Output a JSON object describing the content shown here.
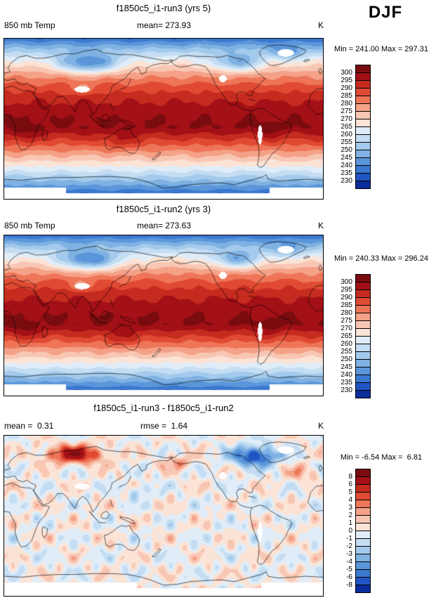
{
  "season": "DJF",
  "palette": [
    "#0b2d9b",
    "#2155c4",
    "#3b78d0",
    "#5b96da",
    "#7fb2e2",
    "#a3caec",
    "#c4ddf3",
    "#e0edf8",
    "#fbe3d6",
    "#f8c7b4",
    "#f4a188",
    "#ee7558",
    "#e04a33",
    "#c62b20",
    "#a31016",
    "#7a0c10"
  ],
  "panels": [
    {
      "title": "f1850c5_i1-run3 (yrs 5)",
      "left_label": "850 mb Temp",
      "center_label": "mean= 273.93",
      "units": "K",
      "minmax": "Min = 241.00 Max = 297.31",
      "colorbar_labels": [
        "300",
        "295",
        "290",
        "285",
        "280",
        "275",
        "270",
        "265",
        "260",
        "255",
        "250",
        "245",
        "240",
        "235",
        "230"
      ]
    },
    {
      "title": "f1850c5_i1-run2 (yrs 3)",
      "left_label": "850 mb Temp",
      "center_label": "mean= 273.63",
      "units": "K",
      "minmax": "Min = 240.33 Max = 296.24",
      "colorbar_labels": [
        "300",
        "295",
        "290",
        "285",
        "280",
        "275",
        "270",
        "265",
        "260",
        "255",
        "250",
        "245",
        "240",
        "235",
        "230"
      ]
    },
    {
      "title": "f1850c5_i1-run3 - f1850c5_i1-run2",
      "left_label": "mean =  0.31",
      "center_label": "rmse =  1.64",
      "units": "K",
      "minmax": "Min = -6.54 Max =  6.81",
      "colorbar_labels": [
        "8",
        "6",
        "5",
        "4",
        "3",
        "2",
        "1",
        "0",
        "-1",
        "-2",
        "-3",
        "-4",
        "-5",
        "-6",
        "-8"
      ]
    }
  ],
  "chart_data": [
    {
      "type": "heatmap",
      "subtype": "global-filled-contour-map",
      "projection": "cylindrical-equidistant, lon 0-360, lat -90-90",
      "title": "f1850c5_i1-run3 (yrs 5)",
      "variable": "850 mb Temp",
      "season": "DJF",
      "units": "K",
      "mean": 273.93,
      "min": 241.0,
      "max": 297.31,
      "contour_levels": [
        230,
        235,
        240,
        245,
        250,
        255,
        260,
        265,
        270,
        275,
        280,
        285,
        290,
        295,
        300
      ],
      "legend_position": "right",
      "notes": "warm red band across tropics, dark blue winter cold pools over Siberia and northern Canada, white masked areas over Tibet, Greenland, Andes, Antarctica interior"
    },
    {
      "type": "heatmap",
      "subtype": "global-filled-contour-map",
      "projection": "cylindrical-equidistant, lon 0-360, lat -90-90",
      "title": "f1850c5_i1-run2 (yrs 3)",
      "variable": "850 mb Temp",
      "season": "DJF",
      "units": "K",
      "mean": 273.63,
      "min": 240.33,
      "max": 296.24,
      "contour_levels": [
        230,
        235,
        240,
        245,
        250,
        255,
        260,
        265,
        270,
        275,
        280,
        285,
        290,
        295,
        300
      ],
      "legend_position": "right",
      "notes": "nearly identical pattern to run3 panel"
    },
    {
      "type": "heatmap",
      "subtype": "global-filled-contour-difference-map",
      "projection": "cylindrical-equidistant, lon 0-360, lat -90-90",
      "title": "f1850c5_i1-run3 - f1850c5_i1-run2",
      "variable": "850 mb Temp difference",
      "season": "DJF",
      "units": "K",
      "mean": 0.31,
      "rmse": 1.64,
      "min": -6.54,
      "max": 6.81,
      "contour_levels": [
        -8,
        -6,
        -5,
        -4,
        -3,
        -2,
        -1,
        0,
        1,
        2,
        3,
        4,
        5,
        6,
        8
      ],
      "legend_position": "right",
      "notes": "mostly near-zero mottled field, strong positive (red) anomaly over Siberian Arctic, strong negative (blue) anomaly over northeastern Canada/Greenland"
    }
  ]
}
